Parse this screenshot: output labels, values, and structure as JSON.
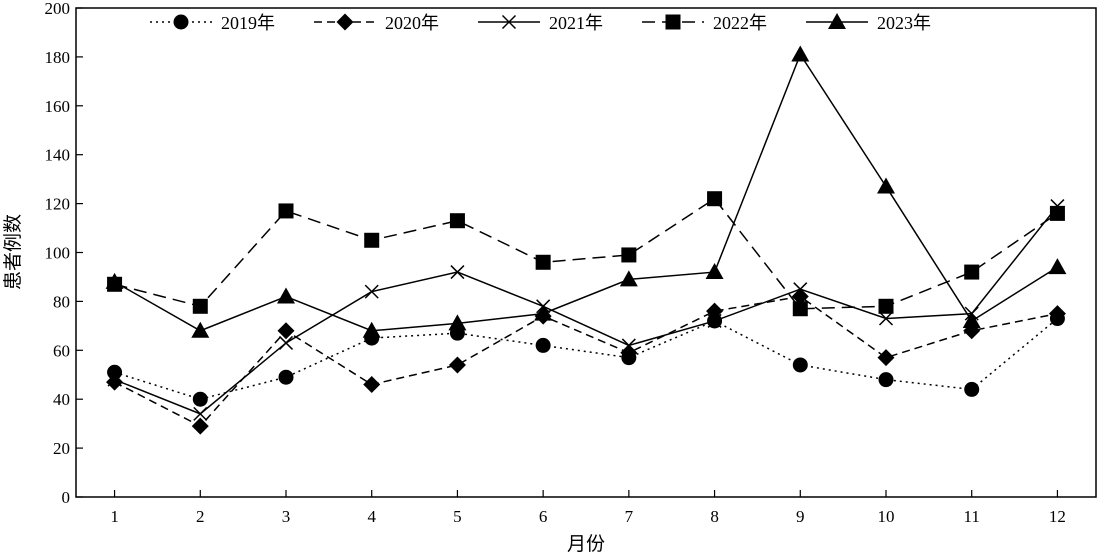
{
  "chart_data": {
    "type": "line",
    "xlabel": "月份",
    "ylabel": "患者例数",
    "x": [
      1,
      2,
      3,
      4,
      5,
      6,
      7,
      8,
      9,
      10,
      11,
      12
    ],
    "xlim": [
      0.55,
      12.45
    ],
    "ylim": [
      0,
      200
    ],
    "yticks": [
      0,
      20,
      40,
      60,
      80,
      100,
      120,
      140,
      160,
      180,
      200
    ],
    "grid": false,
    "legend_position": "top",
    "series": [
      {
        "name": "2019年",
        "marker": "circle",
        "dash": "dotted",
        "values": [
          51,
          40,
          49,
          65,
          67,
          62,
          57,
          72,
          54,
          48,
          44,
          73
        ]
      },
      {
        "name": "2020年",
        "marker": "diamond",
        "dash": "dashed",
        "values": [
          47,
          29,
          68,
          46,
          54,
          74,
          59,
          76,
          82,
          57,
          68,
          75
        ]
      },
      {
        "name": "2021年",
        "marker": "x",
        "dash": "solid",
        "values": [
          48,
          34,
          63,
          84,
          92,
          78,
          62,
          72,
          85,
          73,
          75,
          119
        ]
      },
      {
        "name": "2022年",
        "marker": "square",
        "dash": "longdash",
        "values": [
          87,
          78,
          117,
          105,
          113,
          96,
          99,
          122,
          77,
          78,
          92,
          116
        ]
      },
      {
        "name": "2023年",
        "marker": "triangle",
        "dash": "solid",
        "values": [
          88,
          68,
          82,
          68,
          71,
          75,
          89,
          92,
          181,
          127,
          72,
          94
        ]
      }
    ]
  }
}
